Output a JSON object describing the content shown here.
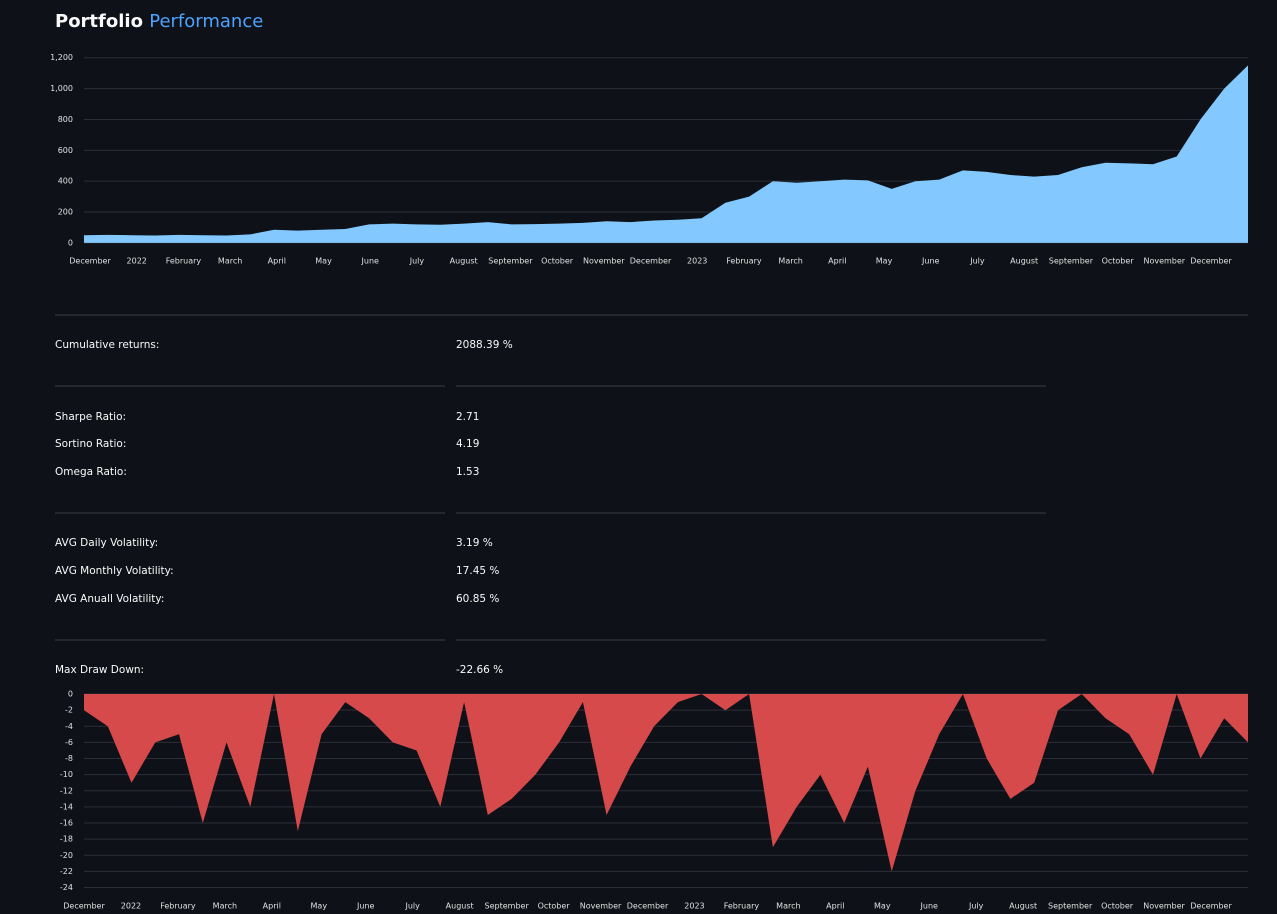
{
  "header": {
    "title": "Portfolio",
    "title_accent": "Performance"
  },
  "chart_data": [
    {
      "type": "area",
      "color": "#83c9ff",
      "grid": true,
      "ylim": [
        -20,
        1250
      ],
      "yticks": [
        0,
        200,
        400,
        600,
        800,
        {
          "value": 1000,
          "label": "1,000"
        },
        {
          "value": 1200,
          "label": "1,200"
        }
      ],
      "xtick_labels": [
        "December",
        "2022",
        "February",
        "March",
        "April",
        "May",
        "June",
        "July",
        "August",
        "September",
        "October",
        "November",
        "December",
        "2023",
        "February",
        "March",
        "April",
        "May",
        "June",
        "July",
        "August",
        "September",
        "October",
        "November",
        "December"
      ],
      "values": [
        50,
        52,
        50,
        48,
        52,
        50,
        48,
        55,
        85,
        80,
        85,
        90,
        120,
        125,
        120,
        118,
        125,
        135,
        120,
        122,
        125,
        130,
        140,
        135,
        145,
        150,
        160,
        260,
        300,
        400,
        390,
        400,
        410,
        405,
        350,
        400,
        410,
        470,
        460,
        440,
        430,
        440,
        490,
        520,
        515,
        510,
        560,
        800,
        1000,
        1150
      ]
    },
    {
      "type": "area",
      "color": "#d64a4b",
      "grid": true,
      "ylim": [
        -24.8,
        0.5
      ],
      "yticks": [
        0,
        -2,
        -4,
        -6,
        -8,
        -10,
        -12,
        -14,
        -16,
        -18,
        -20,
        -22,
        -24
      ],
      "xtick_labels": [
        "December",
        "2022",
        "February",
        "March",
        "April",
        "May",
        "June",
        "July",
        "August",
        "September",
        "October",
        "November",
        "December",
        "2023",
        "February",
        "March",
        "April",
        "May",
        "June",
        "July",
        "August",
        "September",
        "October",
        "November",
        "December"
      ],
      "values": [
        -2,
        -4,
        -11,
        -6,
        -5,
        -16,
        -6,
        -14,
        0,
        -17,
        -5,
        -1,
        -3,
        -6,
        -7,
        -14,
        -1,
        -15,
        -13,
        -10,
        -6,
        -1,
        -15,
        -9,
        -4,
        -1,
        0,
        -2,
        0,
        -19,
        -14,
        -10,
        -16,
        -9,
        -22,
        -12,
        -5,
        0,
        -8,
        -13,
        -11,
        -2,
        0,
        -3,
        -5,
        -10,
        0,
        -8,
        -3,
        -6
      ]
    }
  ],
  "metrics": [
    [
      {
        "label": "Cumulative returns:",
        "value": "2088.39 %"
      }
    ],
    [
      {
        "label": "Sharpe Ratio:",
        "value": "2.71"
      },
      {
        "label": "Sortino Ratio:",
        "value": "4.19"
      },
      {
        "label": "Omega Ratio:",
        "value": "1.53"
      }
    ],
    [
      {
        "label": "AVG Daily Volatility:",
        "value": "3.19 %"
      },
      {
        "label": "AVG Monthly Volatility:",
        "value": "17.45 %"
      },
      {
        "label": "AVG Anuall Volatility:",
        "value": "60.85 %"
      }
    ],
    [
      {
        "label": "Max Draw Down:",
        "value": "-22.66 %"
      }
    ]
  ]
}
